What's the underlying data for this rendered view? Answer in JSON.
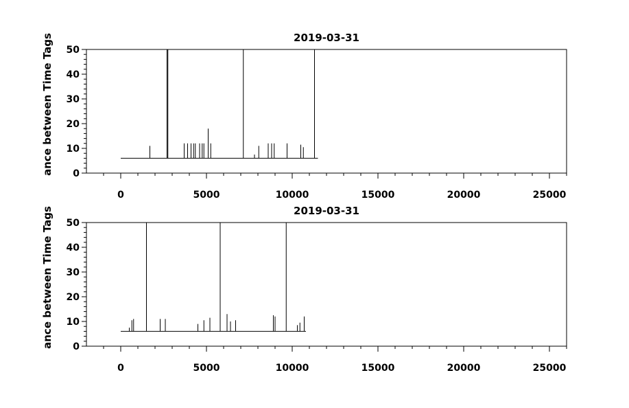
{
  "chart_data": [
    {
      "type": "line",
      "title": "2019-03-31",
      "xlabel": "",
      "ylabel": "ance between Time Tags",
      "xlim": [
        -2000,
        26000
      ],
      "ylim": [
        0,
        50
      ],
      "x_ticks": [
        0,
        5000,
        10000,
        15000,
        20000,
        25000
      ],
      "x_tick_labels": [
        "0",
        "5000",
        "10000",
        "15000",
        "20000",
        "25000"
      ],
      "y_ticks": [
        0,
        10,
        20,
        30,
        40,
        50
      ],
      "y_tick_labels": [
        "0",
        "10",
        "20",
        "30",
        "40",
        "50"
      ],
      "grid": false,
      "baseline": 6,
      "x_range": [
        0,
        11500
      ],
      "spikes": [
        {
          "x": 1700,
          "y": 11
        },
        {
          "x": 2700,
          "y": 50
        },
        {
          "x": 2750,
          "y": 50
        },
        {
          "x": 3700,
          "y": 12
        },
        {
          "x": 3900,
          "y": 12
        },
        {
          "x": 4100,
          "y": 12
        },
        {
          "x": 4250,
          "y": 12
        },
        {
          "x": 4350,
          "y": 12
        },
        {
          "x": 4600,
          "y": 12
        },
        {
          "x": 4750,
          "y": 12
        },
        {
          "x": 4850,
          "y": 12
        },
        {
          "x": 5100,
          "y": 18
        },
        {
          "x": 5250,
          "y": 12
        },
        {
          "x": 7150,
          "y": 50
        },
        {
          "x": 7800,
          "y": 7.5
        },
        {
          "x": 8050,
          "y": 11
        },
        {
          "x": 8600,
          "y": 12
        },
        {
          "x": 8800,
          "y": 12
        },
        {
          "x": 8950,
          "y": 12
        },
        {
          "x": 9700,
          "y": 12
        },
        {
          "x": 10500,
          "y": 11.5
        },
        {
          "x": 10650,
          "y": 10.5
        },
        {
          "x": 11300,
          "y": 50
        }
      ]
    },
    {
      "type": "line",
      "title": "2019-03-31",
      "xlabel": "",
      "ylabel": "ance between Time Tags",
      "xlim": [
        -2000,
        26000
      ],
      "ylim": [
        0,
        50
      ],
      "x_ticks": [
        0,
        5000,
        10000,
        15000,
        20000,
        25000
      ],
      "x_tick_labels": [
        "0",
        "5000",
        "10000",
        "15000",
        "20000",
        "25000"
      ],
      "y_ticks": [
        0,
        10,
        20,
        30,
        40,
        50
      ],
      "y_tick_labels": [
        "0",
        "10",
        "20",
        "30",
        "40",
        "50"
      ],
      "grid": false,
      "baseline": 6,
      "x_range": [
        0,
        10800
      ],
      "spikes": [
        {
          "x": 500,
          "y": 7.5
        },
        {
          "x": 650,
          "y": 10.5
        },
        {
          "x": 750,
          "y": 11
        },
        {
          "x": 1500,
          "y": 50
        },
        {
          "x": 2300,
          "y": 11
        },
        {
          "x": 2600,
          "y": 11
        },
        {
          "x": 4500,
          "y": 9
        },
        {
          "x": 4850,
          "y": 10.5
        },
        {
          "x": 5200,
          "y": 11.5
        },
        {
          "x": 5800,
          "y": 50
        },
        {
          "x": 6200,
          "y": 13
        },
        {
          "x": 6400,
          "y": 10
        },
        {
          "x": 6700,
          "y": 10.5
        },
        {
          "x": 8900,
          "y": 12.5
        },
        {
          "x": 9000,
          "y": 12
        },
        {
          "x": 9650,
          "y": 50
        },
        {
          "x": 10300,
          "y": 8.5
        },
        {
          "x": 10450,
          "y": 9.5
        },
        {
          "x": 10700,
          "y": 12
        }
      ]
    }
  ]
}
